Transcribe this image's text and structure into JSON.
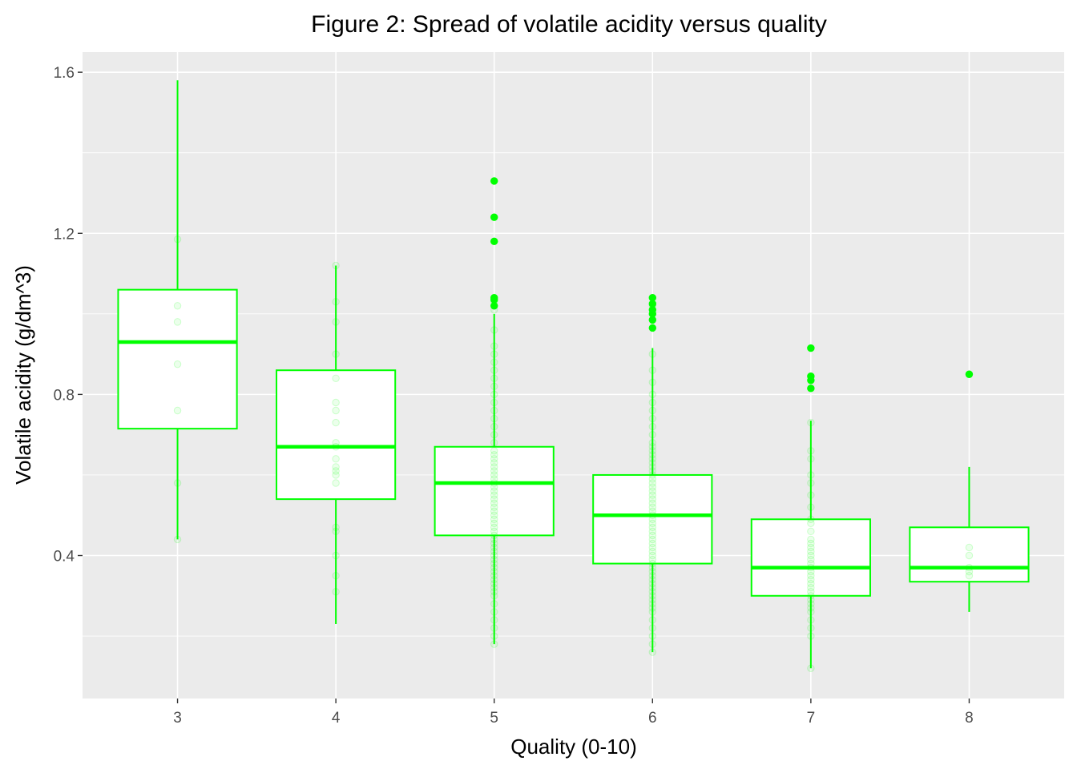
{
  "chart_data": {
    "type": "boxplot",
    "title": "Figure 2: Spread of volatile acidity versus quality",
    "xlabel": "Quality (0-10)",
    "ylabel": "Volatile acidity (g/dm^3)",
    "categories": [
      "3",
      "4",
      "5",
      "6",
      "7",
      "8"
    ],
    "ylim": [
      0.045,
      1.65
    ],
    "y_ticks": [
      0.4,
      0.8,
      1.2,
      1.6
    ],
    "y_tick_labels": [
      "0.4",
      "0.8",
      "1.2",
      "1.6"
    ],
    "grid": true,
    "legend": "none",
    "colors": {
      "panel": "#ebebeb",
      "grid": "#ffffff",
      "box": "#00ff00",
      "box_fill": "#ffffff",
      "points": "#00ff00"
    },
    "boxes": [
      {
        "x": "3",
        "q1": 0.715,
        "median": 0.93,
        "q3": 1.06,
        "whisker_low": 0.44,
        "whisker_high": 1.58,
        "outliers": []
      },
      {
        "x": "4",
        "q1": 0.54,
        "median": 0.67,
        "q3": 0.86,
        "whisker_low": 0.23,
        "whisker_high": 1.12,
        "outliers": []
      },
      {
        "x": "5",
        "q1": 0.45,
        "median": 0.58,
        "q3": 0.67,
        "whisker_low": 0.18,
        "whisker_high": 1.0,
        "outliers": [
          1.02,
          1.035,
          1.04,
          1.18,
          1.24,
          1.33
        ]
      },
      {
        "x": "6",
        "q1": 0.38,
        "median": 0.5,
        "q3": 0.6,
        "whisker_low": 0.16,
        "whisker_high": 0.915,
        "outliers": [
          0.965,
          0.985,
          1.0,
          1.01,
          1.025,
          1.04
        ]
      },
      {
        "x": "7",
        "q1": 0.3,
        "median": 0.37,
        "q3": 0.49,
        "whisker_low": 0.12,
        "whisker_high": 0.735,
        "outliers": [
          0.815,
          0.835,
          0.845,
          0.915
        ]
      },
      {
        "x": "8",
        "q1": 0.335,
        "median": 0.37,
        "q3": 0.47,
        "whisker_low": 0.26,
        "whisker_high": 0.62,
        "outliers": [
          0.85
        ]
      }
    ],
    "jitter_points": {
      "3": [
        1.185,
        1.02,
        0.98,
        0.875,
        0.76,
        0.58,
        0.44
      ],
      "4": [
        1.12,
        1.03,
        0.98,
        0.9,
        0.84,
        0.78,
        0.76,
        0.73,
        0.68,
        0.67,
        0.64,
        0.62,
        0.61,
        0.6,
        0.58,
        0.47,
        0.46,
        0.4,
        0.35,
        0.31
      ],
      "5": [
        1.33,
        1.24,
        1.18,
        1.04,
        1.03,
        1.02,
        1.01,
        0.96,
        0.92,
        0.9,
        0.88,
        0.86,
        0.84,
        0.82,
        0.8,
        0.78,
        0.76,
        0.74,
        0.72,
        0.7,
        0.68,
        0.66,
        0.65,
        0.64,
        0.63,
        0.62,
        0.61,
        0.6,
        0.59,
        0.58,
        0.57,
        0.56,
        0.55,
        0.54,
        0.53,
        0.52,
        0.51,
        0.5,
        0.49,
        0.48,
        0.47,
        0.46,
        0.45,
        0.44,
        0.43,
        0.42,
        0.41,
        0.4,
        0.39,
        0.38,
        0.37,
        0.36,
        0.35,
        0.34,
        0.33,
        0.32,
        0.31,
        0.3,
        0.28,
        0.26,
        0.24,
        0.22,
        0.2,
        0.18
      ],
      "6": [
        1.04,
        1.02,
        1.01,
        1.0,
        0.985,
        0.965,
        0.9,
        0.86,
        0.83,
        0.8,
        0.78,
        0.76,
        0.74,
        0.72,
        0.7,
        0.68,
        0.67,
        0.66,
        0.65,
        0.64,
        0.63,
        0.62,
        0.61,
        0.6,
        0.59,
        0.58,
        0.57,
        0.56,
        0.55,
        0.54,
        0.53,
        0.52,
        0.51,
        0.5,
        0.49,
        0.48,
        0.47,
        0.46,
        0.45,
        0.44,
        0.43,
        0.42,
        0.41,
        0.4,
        0.39,
        0.38,
        0.37,
        0.36,
        0.35,
        0.34,
        0.33,
        0.32,
        0.31,
        0.3,
        0.29,
        0.28,
        0.27,
        0.26,
        0.24,
        0.22,
        0.2,
        0.18,
        0.16
      ],
      "7": [
        0.915,
        0.845,
        0.835,
        0.815,
        0.73,
        0.66,
        0.64,
        0.6,
        0.58,
        0.55,
        0.52,
        0.49,
        0.48,
        0.46,
        0.44,
        0.43,
        0.42,
        0.41,
        0.4,
        0.39,
        0.38,
        0.37,
        0.36,
        0.35,
        0.34,
        0.33,
        0.32,
        0.31,
        0.3,
        0.29,
        0.28,
        0.27,
        0.26,
        0.24,
        0.22,
        0.2,
        0.12
      ],
      "8": [
        0.85,
        0.42,
        0.4,
        0.37,
        0.36,
        0.35
      ]
    }
  }
}
